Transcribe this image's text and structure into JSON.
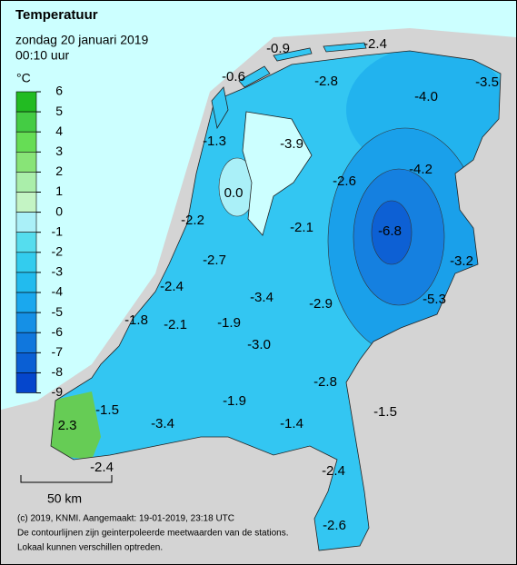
{
  "header": {
    "title": "Temperatuur",
    "date": "zondag 20 januari 2019",
    "time": "00:10 uur"
  },
  "legend": {
    "unit": "°C",
    "labels": [
      "6",
      "5",
      "4",
      "3",
      "2",
      "1",
      "0",
      "-1",
      "-2",
      "-3",
      "-4",
      "-5",
      "-6",
      "-7",
      "-8",
      "-9"
    ],
    "colors": [
      "#22bb22",
      "#44cc44",
      "#66dd55",
      "#88e477",
      "#aaeeaa",
      "#c4f4c4",
      "#aaf0f8",
      "#55ddee",
      "#33ccee",
      "#22bbee",
      "#1aa8ee",
      "#1590e6",
      "#1077dd",
      "#0a5fd4",
      "#0546cc"
    ]
  },
  "stations": [
    "-0.9",
    "-2.4",
    "-0.6",
    "-2.8",
    "-4.0",
    "-3.5",
    "-1.3",
    "-3.9",
    "-4.2",
    "-2.6",
    "0.0",
    "-2.2",
    "-2.1",
    "-6.8",
    "-2.7",
    "-3.2",
    "-2.4",
    "-3.4",
    "-5.3",
    "-2.9",
    "-1.8",
    "-2.1",
    "-1.9",
    "-3.0",
    "-2.8",
    "-1.9",
    "-1.5",
    "-1.5",
    "-3.4",
    "-1.4",
    "2.3",
    "-2.4",
    "-2.4",
    "-2.6"
  ],
  "scale": "50 km",
  "footer": [
    "(c) 2019, KNMI. Aangemaakt: 19-01-2019, 23:18 UTC",
    "De contourlijnen zijn geinterpoleerde meetwaarden van de stations.",
    "Lokaal kunnen verschillen optreden."
  ]
}
